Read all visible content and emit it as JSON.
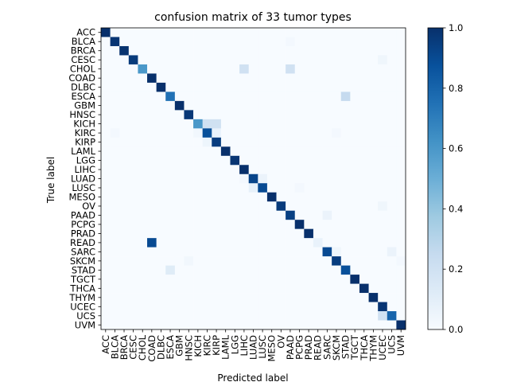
{
  "chart_data": {
    "type": "heatmap",
    "title": "confusion matrix of 33 tumor types",
    "xlabel": "Predicted label",
    "ylabel": "True label",
    "labels": [
      "ACC",
      "BLCA",
      "BRCA",
      "CESC",
      "CHOL",
      "COAD",
      "DLBC",
      "ESCA",
      "GBM",
      "HNSC",
      "KICH",
      "KIRC",
      "KIRP",
      "LAML",
      "LGG",
      "LIHC",
      "LUAD",
      "LUSC",
      "MESO",
      "OV",
      "PAAD",
      "PCPG",
      "PRAD",
      "READ",
      "SARC",
      "SKCM",
      "STAD",
      "TGCT",
      "THCA",
      "THYM",
      "UCEC",
      "UCS",
      "UVM"
    ],
    "value_range": [
      0,
      1
    ],
    "colorbar_ticks": [
      "0.0",
      "0.2",
      "0.4",
      "0.6",
      "0.8",
      "1.0"
    ],
    "colormap": "Blues",
    "matrix": [
      [
        1.0,
        0,
        0,
        0,
        0,
        0,
        0,
        0,
        0,
        0,
        0,
        0,
        0,
        0,
        0,
        0,
        0,
        0,
        0,
        0,
        0,
        0,
        0,
        0,
        0,
        0,
        0,
        0,
        0,
        0,
        0,
        0,
        0
      ],
      [
        0,
        0.98,
        0,
        0,
        0,
        0,
        0,
        0,
        0,
        0,
        0,
        0,
        0,
        0,
        0,
        0,
        0,
        0,
        0,
        0,
        0.02,
        0,
        0,
        0,
        0,
        0,
        0,
        0,
        0,
        0,
        0,
        0,
        0
      ],
      [
        0,
        0,
        0.99,
        0,
        0,
        0,
        0,
        0,
        0,
        0,
        0,
        0,
        0,
        0,
        0,
        0,
        0,
        0,
        0,
        0,
        0,
        0,
        0,
        0,
        0,
        0,
        0,
        0,
        0,
        0,
        0,
        0,
        0
      ],
      [
        0,
        0,
        0,
        0.96,
        0,
        0,
        0,
        0,
        0,
        0,
        0,
        0,
        0,
        0,
        0,
        0,
        0,
        0,
        0,
        0,
        0,
        0,
        0,
        0,
        0,
        0,
        0,
        0,
        0,
        0,
        0.04,
        0,
        0
      ],
      [
        0,
        0,
        0,
        0,
        0.6,
        0,
        0,
        0,
        0,
        0,
        0,
        0,
        0,
        0,
        0,
        0.2,
        0,
        0,
        0,
        0,
        0.2,
        0,
        0,
        0,
        0,
        0,
        0,
        0,
        0,
        0,
        0,
        0,
        0
      ],
      [
        0,
        0,
        0,
        0,
        0,
        1.0,
        0,
        0,
        0,
        0,
        0,
        0,
        0,
        0,
        0,
        0,
        0,
        0,
        0,
        0,
        0,
        0,
        0,
        0,
        0,
        0,
        0,
        0,
        0,
        0,
        0,
        0,
        0
      ],
      [
        0,
        0,
        0,
        0,
        0,
        0,
        1.0,
        0,
        0,
        0,
        0,
        0,
        0,
        0,
        0,
        0,
        0,
        0,
        0,
        0,
        0,
        0,
        0,
        0,
        0,
        0,
        0,
        0,
        0,
        0,
        0,
        0,
        0
      ],
      [
        0,
        0,
        0,
        0,
        0,
        0,
        0,
        0.75,
        0,
        0,
        0,
        0,
        0,
        0,
        0,
        0,
        0,
        0,
        0,
        0,
        0,
        0,
        0,
        0,
        0,
        0,
        0.25,
        0,
        0,
        0,
        0,
        0,
        0
      ],
      [
        0,
        0,
        0,
        0,
        0,
        0,
        0,
        0,
        1.0,
        0,
        0,
        0,
        0,
        0,
        0,
        0,
        0,
        0,
        0,
        0,
        0,
        0,
        0,
        0,
        0,
        0,
        0,
        0,
        0,
        0,
        0,
        0,
        0
      ],
      [
        0,
        0,
        0,
        0,
        0,
        0,
        0,
        0,
        0,
        0.97,
        0,
        0,
        0,
        0,
        0,
        0,
        0,
        0,
        0,
        0,
        0,
        0,
        0,
        0,
        0,
        0,
        0,
        0,
        0,
        0,
        0,
        0,
        0
      ],
      [
        0,
        0,
        0,
        0,
        0,
        0,
        0,
        0,
        0,
        0,
        0.6,
        0.2,
        0.2,
        0,
        0,
        0,
        0,
        0,
        0,
        0,
        0,
        0,
        0,
        0,
        0,
        0,
        0,
        0,
        0,
        0,
        0,
        0,
        0
      ],
      [
        0,
        0.02,
        0,
        0,
        0,
        0,
        0,
        0,
        0,
        0,
        0.03,
        0.88,
        0.07,
        0,
        0,
        0,
        0,
        0,
        0,
        0,
        0,
        0,
        0,
        0,
        0,
        0.02,
        0,
        0,
        0,
        0,
        0,
        0,
        0
      ],
      [
        0,
        0,
        0,
        0,
        0,
        0,
        0,
        0,
        0,
        0,
        0,
        0.05,
        0.95,
        0,
        0,
        0,
        0,
        0,
        0,
        0,
        0,
        0,
        0,
        0,
        0,
        0,
        0,
        0,
        0,
        0,
        0,
        0,
        0
      ],
      [
        0,
        0,
        0,
        0,
        0,
        0,
        0,
        0,
        0,
        0,
        0,
        0,
        0,
        1.0,
        0,
        0,
        0,
        0,
        0,
        0,
        0,
        0,
        0,
        0,
        0,
        0,
        0,
        0,
        0,
        0,
        0,
        0,
        0
      ],
      [
        0,
        0,
        0,
        0,
        0,
        0,
        0,
        0,
        0,
        0,
        0,
        0,
        0,
        0,
        0.98,
        0,
        0,
        0,
        0,
        0,
        0,
        0,
        0,
        0,
        0,
        0,
        0,
        0,
        0,
        0,
        0,
        0,
        0
      ],
      [
        0,
        0,
        0,
        0,
        0,
        0,
        0,
        0,
        0,
        0,
        0,
        0,
        0,
        0,
        0,
        1.0,
        0,
        0,
        0,
        0,
        0,
        0,
        0,
        0,
        0,
        0,
        0,
        0,
        0,
        0,
        0,
        0,
        0
      ],
      [
        0,
        0,
        0,
        0,
        0,
        0,
        0,
        0,
        0,
        0,
        0,
        0,
        0,
        0,
        0,
        0.02,
        0.92,
        0.06,
        0,
        0,
        0,
        0,
        0,
        0,
        0,
        0,
        0,
        0,
        0,
        0,
        0,
        0,
        0
      ],
      [
        0,
        0,
        0,
        0,
        0,
        0,
        0,
        0,
        0,
        0,
        0,
        0,
        0,
        0,
        0,
        0,
        0.08,
        0.9,
        0,
        0,
        0,
        0.02,
        0,
        0,
        0,
        0,
        0,
        0,
        0,
        0,
        0,
        0,
        0
      ],
      [
        0,
        0,
        0,
        0,
        0,
        0,
        0,
        0,
        0,
        0,
        0,
        0,
        0,
        0,
        0,
        0,
        0,
        0,
        1.0,
        0,
        0,
        0,
        0,
        0,
        0,
        0,
        0,
        0,
        0,
        0,
        0,
        0,
        0
      ],
      [
        0,
        0,
        0,
        0,
        0,
        0,
        0,
        0,
        0,
        0,
        0,
        0,
        0,
        0,
        0,
        0,
        0,
        0,
        0,
        0.96,
        0,
        0,
        0,
        0,
        0,
        0,
        0,
        0,
        0,
        0,
        0.04,
        0,
        0
      ],
      [
        0,
        0,
        0,
        0,
        0,
        0,
        0,
        0,
        0,
        0,
        0,
        0,
        0,
        0,
        0,
        0,
        0,
        0,
        0,
        0,
        0.94,
        0,
        0,
        0,
        0.06,
        0,
        0,
        0,
        0,
        0,
        0,
        0,
        0
      ],
      [
        0,
        0,
        0,
        0,
        0,
        0,
        0,
        0,
        0,
        0,
        0,
        0,
        0,
        0,
        0,
        0,
        0,
        0,
        0,
        0,
        0,
        1.0,
        0,
        0,
        0,
        0,
        0,
        0,
        0,
        0,
        0,
        0,
        0
      ],
      [
        0,
        0,
        0,
        0,
        0,
        0,
        0,
        0,
        0,
        0,
        0,
        0,
        0,
        0,
        0,
        0,
        0,
        0,
        0,
        0,
        0,
        0,
        1.0,
        0,
        0,
        0,
        0,
        0,
        0,
        0,
        0,
        0,
        0
      ],
      [
        0,
        0,
        0,
        0,
        0,
        0.9,
        0,
        0,
        0,
        0,
        0,
        0,
        0,
        0,
        0,
        0,
        0,
        0,
        0,
        0,
        0,
        0,
        0,
        0.07,
        0,
        0,
        0,
        0,
        0,
        0,
        0,
        0,
        0
      ],
      [
        0,
        0,
        0,
        0,
        0,
        0,
        0,
        0,
        0,
        0,
        0,
        0,
        0,
        0,
        0,
        0,
        0,
        0,
        0,
        0,
        0,
        0,
        0,
        0,
        0.9,
        0.04,
        0,
        0,
        0,
        0,
        0,
        0.06,
        0
      ],
      [
        0,
        0,
        0,
        0,
        0,
        0,
        0,
        0,
        0,
        0.03,
        0,
        0,
        0,
        0,
        0,
        0,
        0,
        0,
        0,
        0,
        0,
        0,
        0,
        0,
        0,
        0.95,
        0,
        0,
        0,
        0,
        0,
        0,
        0.02
      ],
      [
        0,
        0,
        0,
        0,
        0,
        0,
        0,
        0.12,
        0,
        0,
        0,
        0,
        0,
        0,
        0,
        0,
        0,
        0,
        0,
        0,
        0,
        0,
        0,
        0,
        0,
        0,
        0.88,
        0,
        0,
        0,
        0,
        0,
        0
      ],
      [
        0,
        0,
        0,
        0,
        0,
        0,
        0,
        0,
        0,
        0,
        0,
        0,
        0,
        0,
        0,
        0,
        0,
        0,
        0,
        0,
        0,
        0,
        0,
        0,
        0,
        0,
        0,
        1.0,
        0,
        0,
        0,
        0,
        0
      ],
      [
        0,
        0,
        0,
        0,
        0,
        0,
        0,
        0,
        0,
        0,
        0,
        0,
        0,
        0,
        0,
        0,
        0,
        0,
        0,
        0,
        0,
        0,
        0,
        0,
        0,
        0,
        0,
        0,
        1.0,
        0,
        0,
        0,
        0
      ],
      [
        0,
        0,
        0,
        0,
        0,
        0,
        0,
        0,
        0,
        0,
        0,
        0,
        0,
        0,
        0,
        0,
        0,
        0,
        0,
        0,
        0,
        0,
        0,
        0,
        0,
        0,
        0,
        0,
        0,
        1.0,
        0,
        0,
        0
      ],
      [
        0,
        0,
        0,
        0,
        0,
        0,
        0,
        0,
        0,
        0,
        0,
        0,
        0,
        0,
        0,
        0,
        0,
        0,
        0,
        0,
        0,
        0,
        0,
        0,
        0,
        0,
        0,
        0,
        0,
        0,
        0.98,
        0,
        0
      ],
      [
        0,
        0,
        0,
        0,
        0,
        0,
        0,
        0,
        0,
        0,
        0,
        0,
        0,
        0,
        0,
        0,
        0,
        0,
        0,
        0,
        0,
        0,
        0,
        0,
        0,
        0,
        0,
        0,
        0,
        0,
        0.2,
        0.8,
        0
      ],
      [
        0,
        0,
        0,
        0,
        0,
        0,
        0,
        0,
        0,
        0,
        0,
        0,
        0,
        0,
        0,
        0,
        0,
        0,
        0,
        0,
        0,
        0,
        0,
        0,
        0,
        0,
        0,
        0,
        0,
        0,
        0,
        0,
        1.0
      ]
    ]
  }
}
